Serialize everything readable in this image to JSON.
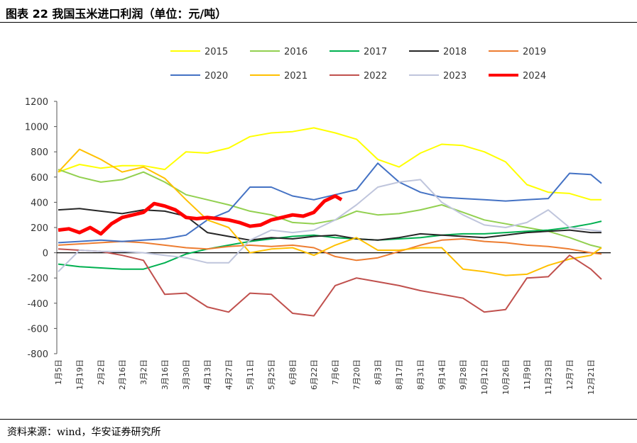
{
  "title": "图表 22  我国玉米进口利润（单位：元/吨）",
  "source": "资料来源：wind，华安证券研究所",
  "chart_data": {
    "type": "line",
    "title": "我国玉米进口利润（单位：元/吨）",
    "xlabel": "",
    "ylabel": "",
    "ylim": [
      -800,
      1200
    ],
    "yticks": [
      -800,
      -600,
      -400,
      -200,
      0,
      200,
      400,
      600,
      800,
      1000,
      1200
    ],
    "xticks": [
      "1月5日",
      "1月19日",
      "2月2日",
      "2月16日",
      "3月2日",
      "3月16日",
      "3月30日",
      "4月13日",
      "4月27日",
      "5月11日",
      "5月25日",
      "6月8日",
      "6月22日",
      "7月6日",
      "7月20日",
      "8月3日",
      "8月17日",
      "8月31日",
      "9月14日",
      "9月28日",
      "10月12日",
      "10月26日",
      "11月9日",
      "11月23日",
      "12月7日",
      "12月21日"
    ],
    "legend_position": "top",
    "grid": false,
    "series": [
      {
        "name": "2015",
        "color": "#FFFF00",
        "width": 2,
        "x": [
          0,
          1,
          2,
          3,
          4,
          5,
          6,
          7,
          8,
          9,
          10,
          11,
          12,
          13,
          14,
          15,
          16,
          17,
          18,
          19,
          20,
          21,
          22,
          23,
          24,
          25,
          25.5
        ],
        "y": [
          640,
          700,
          670,
          690,
          690,
          660,
          800,
          790,
          830,
          920,
          950,
          960,
          990,
          950,
          900,
          740,
          680,
          790,
          860,
          850,
          800,
          720,
          540,
          480,
          470,
          420,
          420
        ]
      },
      {
        "name": "2016",
        "color": "#92D050",
        "width": 2,
        "x": [
          0,
          1,
          2,
          3,
          4,
          5,
          6,
          7,
          8,
          9,
          10,
          11,
          12,
          13,
          14,
          15,
          16,
          17,
          18,
          19,
          20,
          21,
          22,
          23,
          24,
          25,
          25.5
        ],
        "y": [
          660,
          600,
          560,
          580,
          640,
          560,
          460,
          420,
          380,
          330,
          300,
          240,
          230,
          260,
          330,
          300,
          310,
          340,
          380,
          320,
          260,
          230,
          200,
          170,
          120,
          60,
          40
        ]
      },
      {
        "name": "2017",
        "color": "#00B050",
        "width": 2,
        "x": [
          0,
          1,
          2,
          3,
          4,
          5,
          6,
          7,
          8,
          9,
          10,
          11,
          12,
          13,
          14,
          15,
          16,
          17,
          18,
          19,
          20,
          21,
          22,
          23,
          24,
          25,
          25.5
        ],
        "y": [
          -90,
          -110,
          -120,
          -130,
          -130,
          -80,
          -10,
          30,
          60,
          90,
          110,
          130,
          140,
          120,
          110,
          100,
          110,
          120,
          140,
          150,
          150,
          160,
          170,
          180,
          200,
          230,
          250
        ]
      },
      {
        "name": "2018",
        "color": "#262626",
        "width": 2,
        "x": [
          0,
          1,
          2,
          3,
          4,
          5,
          6,
          7,
          8,
          9,
          10,
          11,
          12,
          13,
          14,
          15,
          16,
          17,
          18,
          19,
          20,
          21,
          22,
          23,
          24,
          25,
          25.5
        ],
        "y": [
          340,
          350,
          330,
          310,
          340,
          330,
          290,
          160,
          130,
          100,
          120,
          110,
          130,
          140,
          110,
          100,
          120,
          150,
          140,
          130,
          120,
          140,
          160,
          170,
          180,
          160,
          160
        ]
      },
      {
        "name": "2019",
        "color": "#ED7D31",
        "width": 2,
        "x": [
          0,
          1,
          2,
          3,
          4,
          5,
          6,
          7,
          8,
          9,
          10,
          11,
          12,
          13,
          14,
          15,
          16,
          17,
          18,
          19,
          20,
          21,
          22,
          23,
          24,
          25,
          25.5
        ],
        "y": [
          60,
          70,
          80,
          90,
          80,
          60,
          40,
          30,
          50,
          60,
          50,
          60,
          40,
          -30,
          -60,
          -40,
          10,
          60,
          100,
          110,
          90,
          80,
          60,
          50,
          30,
          0,
          -10
        ]
      },
      {
        "name": "2020",
        "color": "#4472C4",
        "width": 2,
        "x": [
          0,
          1,
          2,
          3,
          4,
          5,
          6,
          7,
          8,
          9,
          10,
          11,
          12,
          13,
          14,
          15,
          16,
          17,
          18,
          19,
          20,
          21,
          22,
          23,
          24,
          25,
          25.5
        ],
        "y": [
          80,
          90,
          100,
          90,
          100,
          110,
          140,
          260,
          330,
          520,
          520,
          450,
          420,
          460,
          500,
          710,
          560,
          480,
          440,
          430,
          420,
          410,
          420,
          430,
          630,
          620,
          550
        ]
      },
      {
        "name": "2021",
        "color": "#FFC000",
        "width": 2,
        "x": [
          0,
          1,
          2,
          3,
          4,
          5,
          6,
          7,
          8,
          9,
          10,
          11,
          12,
          13,
          14,
          15,
          16,
          17,
          18,
          19,
          20,
          21,
          22,
          23,
          24,
          25,
          25.5
        ],
        "y": [
          640,
          820,
          740,
          640,
          680,
          590,
          420,
          260,
          200,
          0,
          30,
          40,
          -20,
          60,
          120,
          20,
          20,
          40,
          40,
          -130,
          -150,
          -180,
          -170,
          -100,
          -50,
          -20,
          40
        ]
      },
      {
        "name": "2022",
        "color": "#C0504D",
        "width": 2,
        "x": [
          0,
          1,
          2,
          3,
          4,
          5,
          6,
          7,
          8,
          9,
          10,
          11,
          12,
          13,
          14,
          15,
          16,
          17,
          18,
          19,
          20,
          21,
          22,
          23,
          24,
          25,
          25.5
        ],
        "y": [
          30,
          20,
          10,
          -20,
          -60,
          -330,
          -320,
          -430,
          -470,
          -320,
          -330,
          -480,
          -500,
          -260,
          -200,
          -230,
          -260,
          -300,
          -330,
          -360,
          -470,
          -450,
          -200,
          -190,
          -20,
          -130,
          -210
        ]
      },
      {
        "name": "2023",
        "color": "#BFC5DC",
        "width": 2,
        "x": [
          0,
          1,
          2,
          3,
          4,
          5,
          6,
          7,
          8,
          9,
          10,
          11,
          12,
          13,
          14,
          15,
          16,
          17,
          18,
          19,
          20,
          21,
          22,
          23,
          24,
          25,
          25.5
        ],
        "y": [
          -150,
          20,
          10,
          10,
          0,
          -20,
          -40,
          -80,
          -80,
          100,
          180,
          160,
          180,
          260,
          380,
          520,
          560,
          580,
          400,
          300,
          220,
          200,
          240,
          340,
          200,
          180,
          170
        ]
      },
      {
        "name": "2024",
        "color": "#FF0000",
        "width": 5,
        "x": [
          0,
          0.5,
          1,
          1.5,
          2,
          2.5,
          3,
          3.5,
          4,
          4.5,
          5,
          5.5,
          6,
          6.5,
          7,
          7.5,
          8,
          8.5,
          9,
          9.5,
          10,
          10.5,
          11,
          11.5,
          12,
          12.5,
          13,
          13.3
        ],
        "y": [
          180,
          190,
          160,
          200,
          150,
          230,
          280,
          300,
          320,
          390,
          370,
          340,
          280,
          270,
          280,
          270,
          260,
          240,
          210,
          220,
          260,
          280,
          300,
          290,
          320,
          410,
          450,
          420
        ]
      }
    ]
  }
}
